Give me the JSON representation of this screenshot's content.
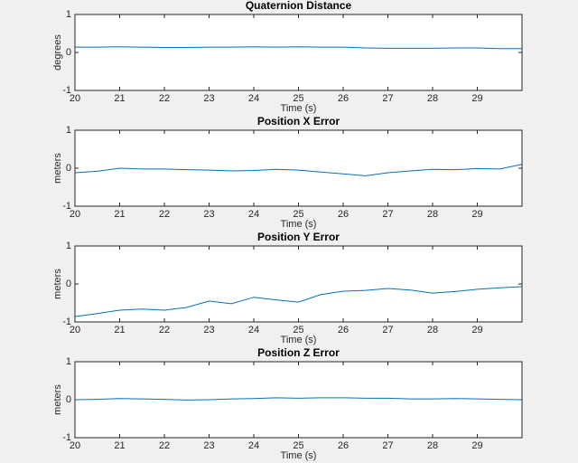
{
  "chart_data": [
    {
      "type": "line",
      "title": "Quaternion Distance",
      "xlabel": "Time (s)",
      "ylabel": "degrees",
      "x": [
        20,
        20.5,
        21,
        21.5,
        22,
        22.5,
        23,
        23.5,
        24,
        24.5,
        25,
        25.5,
        26,
        26.5,
        27,
        27.5,
        28,
        28.5,
        29,
        29.5,
        30
      ],
      "values": [
        0.14,
        0.14,
        0.15,
        0.14,
        0.13,
        0.13,
        0.14,
        0.14,
        0.15,
        0.14,
        0.15,
        0.14,
        0.14,
        0.12,
        0.11,
        0.11,
        0.11,
        0.12,
        0.12,
        0.1,
        0.1
      ],
      "color": "#0072bd",
      "xlim": [
        20,
        30
      ],
      "ylim": [
        -1,
        1
      ],
      "xticks": [
        20,
        21,
        22,
        23,
        24,
        25,
        26,
        27,
        28,
        29
      ],
      "yticks": [
        -1,
        0,
        1
      ]
    },
    {
      "type": "line",
      "title": "Position X Error",
      "xlabel": "Time (s)",
      "ylabel": "meters",
      "x": [
        20,
        20.5,
        21,
        21.5,
        22,
        22.5,
        23,
        23.5,
        24,
        24.5,
        25,
        25.5,
        26,
        26.5,
        27,
        27.5,
        28,
        28.5,
        29,
        29.5,
        30
      ],
      "values": [
        -0.12,
        -0.08,
        0,
        -0.02,
        -0.02,
        -0.04,
        -0.05,
        -0.07,
        -0.06,
        -0.03,
        -0.05,
        -0.1,
        -0.15,
        -0.2,
        -0.12,
        -0.07,
        -0.03,
        -0.04,
        -0.01,
        -0.02,
        0.1
      ],
      "color": "#0072bd",
      "xlim": [
        20,
        30
      ],
      "ylim": [
        -1,
        1
      ],
      "xticks": [
        20,
        21,
        22,
        23,
        24,
        25,
        26,
        27,
        28,
        29
      ],
      "yticks": [
        -1,
        0,
        1
      ]
    },
    {
      "type": "line",
      "title": "Position Y Error",
      "xlabel": "Time (s)",
      "ylabel": "meters",
      "x": [
        20,
        20.5,
        21,
        21.5,
        22,
        22.5,
        23,
        23.5,
        24,
        24.5,
        25,
        25.5,
        26,
        26.5,
        27,
        27.5,
        28,
        28.5,
        29,
        29.5,
        30
      ],
      "values": [
        -0.86,
        -0.78,
        -0.69,
        -0.66,
        -0.69,
        -0.62,
        -0.45,
        -0.52,
        -0.35,
        -0.42,
        -0.48,
        -0.28,
        -0.19,
        -0.17,
        -0.12,
        -0.16,
        -0.24,
        -0.2,
        -0.14,
        -0.1,
        -0.07
      ],
      "color": "#0072bd",
      "xlim": [
        20,
        30
      ],
      "ylim": [
        -1,
        1
      ],
      "xticks": [
        20,
        21,
        22,
        23,
        24,
        25,
        26,
        27,
        28,
        29
      ],
      "yticks": [
        -1,
        0,
        1
      ]
    },
    {
      "type": "line",
      "title": "Position Z Error",
      "xlabel": "Time (s)",
      "ylabel": "meters",
      "x": [
        20,
        20.5,
        21,
        21.5,
        22,
        22.5,
        23,
        23.5,
        24,
        24.5,
        25,
        25.5,
        26,
        26.5,
        27,
        27.5,
        28,
        28.5,
        29,
        29.5,
        30
      ],
      "values": [
        0,
        0.01,
        0.03,
        0.02,
        0.01,
        -0.01,
        0,
        0.02,
        0.03,
        0.05,
        0.04,
        0.05,
        0.05,
        0.04,
        0.04,
        0.02,
        0.02,
        0.03,
        0.02,
        0.01,
        0
      ],
      "color": "#0072bd",
      "xlim": [
        20,
        30
      ],
      "ylim": [
        -1,
        1
      ],
      "xticks": [
        20,
        21,
        22,
        23,
        24,
        25,
        26,
        27,
        28,
        29
      ],
      "yticks": [
        -1,
        0,
        1
      ]
    }
  ]
}
